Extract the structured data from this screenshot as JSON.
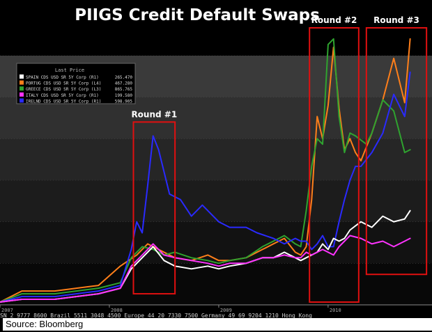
{
  "chart_data": {
    "type": "line",
    "title": "PIIGS Credit Default Swaps",
    "legend": {
      "header": "Last Price",
      "placement": "top-left",
      "entries": [
        {
          "label": "SPAIN CDS USD SR 5Y Corp  (R1)",
          "value": "265.470",
          "color": "#ffffff"
        },
        {
          "label": "PORTUG CDS USD SR 5Y Corp (L4)",
          "value": "467.280",
          "color": "#ff7f1a"
        },
        {
          "label": "GREECE CDS USD SR 5Y Corp (L3)",
          "value": "865.765",
          "color": "#2fa32f"
        },
        {
          "label": "ITALY CDS USD SR 5Y Corp  (R1)",
          "value": "199.580",
          "color": "#ff33ff"
        },
        {
          "label": "IRELND CDS USD SR 5Y Corp (R1)",
          "value": "598.905",
          "color": "#2a2aff"
        }
      ]
    },
    "x_ticks": [
      "2007",
      "2008",
      "2009",
      "2010"
    ],
    "xlim": [
      2007.0,
      2010.95
    ],
    "ylim": [
      0,
      100
    ],
    "grid": true,
    "series": [
      {
        "name": "PORTUG CDS USD SR 5Y Corp (L4)",
        "color": "#ff7f1a",
        "x": [
          2007.0,
          2007.2,
          2007.5,
          2007.9,
          2008.1,
          2008.25,
          2008.35,
          2008.5,
          2008.6,
          2008.75,
          2008.9,
          2009.0,
          2009.1,
          2009.25,
          2009.4,
          2009.5,
          2009.6,
          2009.7,
          2009.75,
          2009.8,
          2009.85,
          2009.9,
          2009.95,
          2010.0,
          2010.05,
          2010.1,
          2010.15,
          2010.2,
          2010.25,
          2010.3,
          2010.4,
          2010.5,
          2010.6,
          2010.7,
          2010.75
        ],
        "y": [
          1,
          5,
          5,
          7,
          14,
          18,
          22,
          19,
          17,
          16,
          18,
          16,
          16,
          17,
          20,
          22,
          24,
          19,
          18,
          21,
          38,
          68,
          60,
          72,
          93,
          71,
          56,
          60,
          55,
          52,
          62,
          74,
          89,
          73,
          96
        ]
      },
      {
        "name": "GREECE CDS USD SR 5Y Corp (L3)",
        "color": "#2fa32f",
        "x": [
          2007.0,
          2007.2,
          2007.5,
          2007.9,
          2008.1,
          2008.2,
          2008.3,
          2008.4,
          2008.5,
          2008.6,
          2008.75,
          2008.9,
          2009.0,
          2009.1,
          2009.25,
          2009.4,
          2009.5,
          2009.6,
          2009.7,
          2009.75,
          2009.8,
          2009.85,
          2009.9,
          2009.95,
          2010.0,
          2010.05,
          2010.1,
          2010.15,
          2010.2,
          2010.25,
          2010.35,
          2010.4,
          2010.5,
          2010.6,
          2010.7,
          2010.75
        ],
        "y": [
          1,
          4,
          4,
          6,
          8,
          17,
          21,
          20,
          18,
          19,
          17,
          16,
          15,
          16,
          17,
          21,
          23,
          25,
          22,
          21,
          34,
          50,
          60,
          58,
          94,
          96,
          68,
          55,
          62,
          61,
          58,
          62,
          74,
          70,
          55,
          56
        ]
      },
      {
        "name": "IRELND CDS USD SR 5Y Corp (R1)",
        "color": "#2a2aff",
        "x": [
          2007.0,
          2007.2,
          2007.5,
          2007.9,
          2008.1,
          2008.2,
          2008.25,
          2008.3,
          2008.35,
          2008.4,
          2008.45,
          2008.55,
          2008.65,
          2008.75,
          2008.85,
          2009.0,
          2009.1,
          2009.25,
          2009.35,
          2009.5,
          2009.6,
          2009.7,
          2009.75,
          2009.8,
          2009.85,
          2009.9,
          2009.95,
          2010.0,
          2010.05,
          2010.1,
          2010.15,
          2010.2,
          2010.25,
          2010.3,
          2010.4,
          2010.5,
          2010.6,
          2010.7,
          2010.75
        ],
        "y": [
          1,
          3,
          3,
          5,
          7,
          20,
          30,
          26,
          43,
          61,
          56,
          40,
          38,
          32,
          36,
          30,
          28,
          28,
          26,
          24,
          22,
          24,
          23,
          23,
          20,
          22,
          25,
          21,
          21,
          30,
          38,
          45,
          50,
          50,
          55,
          62,
          76,
          68,
          84
        ]
      },
      {
        "name": "SPAIN CDS USD SR 5Y Corp (R1)",
        "color": "#ffffff",
        "x": [
          2007.0,
          2007.2,
          2007.5,
          2007.9,
          2008.1,
          2008.2,
          2008.3,
          2008.4,
          2008.5,
          2008.6,
          2008.75,
          2008.9,
          2009.0,
          2009.1,
          2009.25,
          2009.4,
          2009.5,
          2009.6,
          2009.7,
          2009.75,
          2009.8,
          2009.85,
          2009.9,
          2009.95,
          2010.0,
          2010.05,
          2010.1,
          2010.15,
          2010.2,
          2010.3,
          2010.4,
          2010.5,
          2010.6,
          2010.7,
          2010.75
        ],
        "y": [
          1,
          2,
          2,
          4,
          6,
          13,
          17,
          21,
          16,
          14,
          13,
          14,
          13,
          14,
          15,
          17,
          17,
          19,
          17,
          16,
          17,
          18,
          19,
          22,
          20,
          24,
          23,
          24,
          27,
          30,
          28,
          32,
          30,
          31,
          34
        ]
      },
      {
        "name": "ITALY CDS USD SR 5Y Corp (R1)",
        "color": "#ff33ff",
        "x": [
          2007.0,
          2007.2,
          2007.5,
          2007.9,
          2008.1,
          2008.2,
          2008.3,
          2008.4,
          2008.5,
          2008.6,
          2008.75,
          2008.9,
          2009.0,
          2009.1,
          2009.25,
          2009.4,
          2009.5,
          2009.6,
          2009.7,
          2009.75,
          2009.8,
          2009.85,
          2009.9,
          2009.95,
          2010.0,
          2010.05,
          2010.1,
          2010.15,
          2010.2,
          2010.3,
          2010.4,
          2010.5,
          2010.6,
          2010.7,
          2010.75
        ],
        "y": [
          1,
          2,
          2,
          4,
          6,
          14,
          18,
          22,
          18,
          17,
          16,
          15,
          14,
          15,
          15,
          17,
          17,
          18,
          17,
          17,
          19,
          18,
          19,
          20,
          19,
          18,
          21,
          23,
          25,
          24,
          22,
          23,
          21,
          23,
          24
        ]
      }
    ],
    "annotations": [
      {
        "label": "Round #1",
        "x0": 2008.22,
        "x1": 2008.6,
        "y0": 4,
        "y1": 66
      },
      {
        "label": "Round #2",
        "x0": 2009.83,
        "x1": 2010.28,
        "y0": 1,
        "y1": 100
      },
      {
        "label": "Round #3",
        "x0": 2010.35,
        "x1": 2010.9,
        "y0": 11,
        "y1": 100
      }
    ]
  },
  "footer_text": "SN 2 9777 8600 Brazil 5511 3048 4500 Europe 44 20 7330 7500 Germany 49 69 9204 1210 Hong Kong",
  "source": "Source: Bloomberg"
}
